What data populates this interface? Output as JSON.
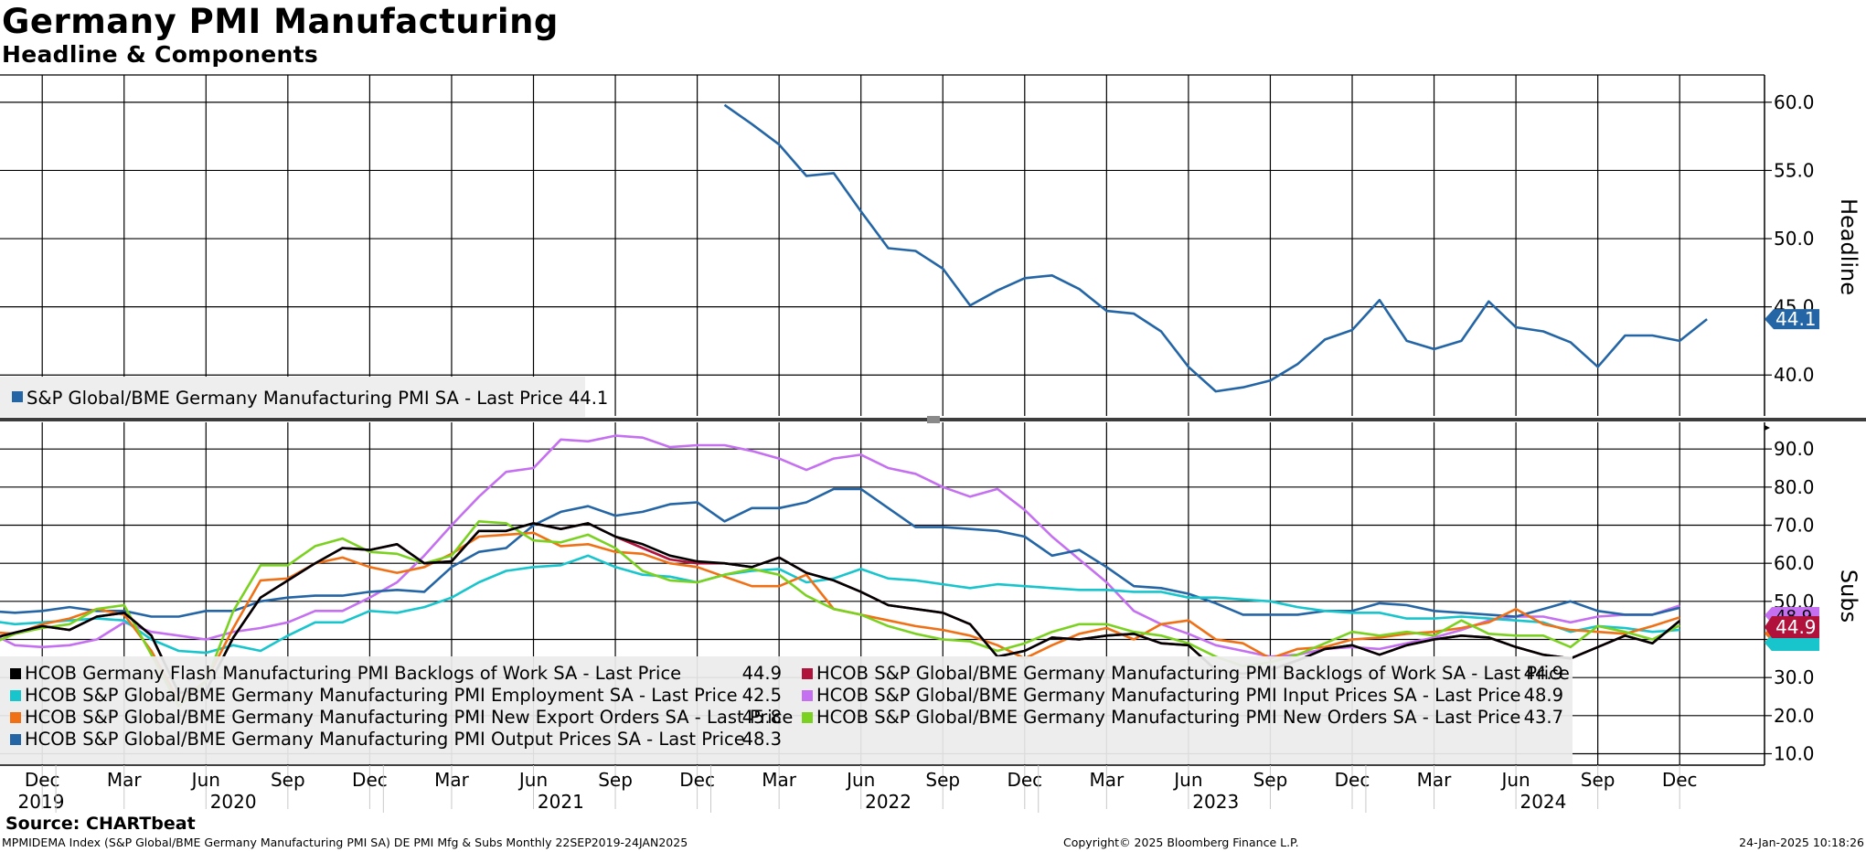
{
  "header": {
    "title": "Germany PMI Manufacturing",
    "subtitle": "Headline & Components"
  },
  "footer": {
    "source": "Source: CHARTbeat",
    "left": "MPMIDEMA Index (S&P Global/BME Germany Manufacturing PMI SA) DE PMI Mfg & Subs  Monthly 22SEP2019-24JAN2025",
    "center": "Copyright© 2025 Bloomberg Finance L.P.",
    "right": "24-Jan-2025 10:18:26"
  },
  "chart_data": [
    {
      "type": "line",
      "panel": "Headline",
      "ylabel": "Headline",
      "ylim": [
        37.0,
        62.0
      ],
      "yticks": [
        "60.0",
        "55.0",
        "50.0",
        "45.0",
        "40.0"
      ],
      "grid": true,
      "legend_position": "bottom-left",
      "series": [
        {
          "name": "S&P Global/BME Germany Manufacturing PMI SA - Last Price",
          "legend_value": "44.1",
          "last_label": "44.1",
          "color": "#2465a6",
          "start": "2022-01",
          "values": [
            59.8,
            58.4,
            56.9,
            54.6,
            54.8,
            52.0,
            49.3,
            49.1,
            47.8,
            45.1,
            46.2,
            47.1,
            47.3,
            46.3,
            44.7,
            44.5,
            43.2,
            40.6,
            38.8,
            39.1,
            39.6,
            40.8,
            42.6,
            43.3,
            45.5,
            42.5,
            41.9,
            42.5,
            45.4,
            43.5,
            43.2,
            42.4,
            40.6,
            42.9,
            42.9,
            42.5,
            44.1
          ]
        }
      ]
    },
    {
      "type": "line",
      "panel": "Subs",
      "ylabel": "Subs",
      "ylim": [
        7.0,
        97.0
      ],
      "yticks": [
        "90.0",
        "80.0",
        "70.0",
        "60.0",
        "50.0",
        "40.0",
        "30.0",
        "20.0",
        "10.0"
      ],
      "grid": true,
      "legend_position": "bottom-left",
      "last_labels": [
        "48.9",
        "44.9"
      ],
      "start": "2019-10",
      "series": [
        {
          "name": "HCOB Germany Flash Manufacturing PMI Backlogs of Work SA - Last Price",
          "legend_value": "44.9",
          "color": "#000000",
          "values": [
            40.0,
            41.8,
            43.5,
            42.5,
            46.0,
            47.0,
            41.0,
            26.0,
            26.5,
            40.5,
            51.0,
            55.5,
            60.0,
            64.0,
            63.5,
            65.0,
            60.0,
            60.5,
            68.5,
            68.5,
            70.5,
            69.0,
            70.5,
            67.0,
            65.0,
            62.0,
            60.5,
            60.0,
            59.0,
            61.5,
            57.5,
            55.5,
            52.5,
            49.0,
            48.0,
            47.0,
            44.0,
            35.5,
            37.0,
            40.5,
            40.0,
            41.0,
            41.5,
            39.0,
            38.5,
            32.0,
            31.0,
            32.0,
            34.5,
            37.5,
            38.5,
            36.0,
            38.5,
            40.0,
            41.0,
            40.5,
            38.0,
            36.0,
            35.0,
            38.0,
            41.0,
            39.0,
            44.9
          ]
        },
        {
          "name": "HCOB S&P Global/BME Germany Manufacturing PMI Backlogs of Work SA - Last Price",
          "legend_value": "44.9",
          "color": "#b0123c",
          "values": [
            40.0,
            41.8,
            43.5,
            42.5,
            46.0,
            47.0,
            41.0,
            26.0,
            26.5,
            40.5,
            51.0,
            55.5,
            60.0,
            64.0,
            63.5,
            65.0,
            60.0,
            60.5,
            68.5,
            68.5,
            70.5,
            69.0,
            70.5,
            67.0,
            64.0,
            61.0,
            60.0,
            60.0,
            59.0,
            61.5,
            57.5,
            55.5,
            52.5,
            49.0,
            48.0,
            47.0,
            44.0,
            35.5,
            37.0,
            40.5,
            40.0,
            41.0,
            41.5,
            39.0,
            38.5,
            32.0,
            31.0,
            32.0,
            34.5,
            37.5,
            38.5,
            36.0,
            38.5,
            40.0,
            41.0,
            40.5,
            38.0,
            36.0,
            35.0,
            38.0,
            41.0,
            39.0,
            44.9
          ]
        },
        {
          "name": "HCOB S&P Global/BME Germany Manufacturing PMI Employment SA - Last Price",
          "legend_value": "42.5",
          "color": "#18c5cd",
          "values": [
            45.0,
            44.0,
            44.5,
            45.0,
            45.5,
            45.0,
            40.0,
            37.0,
            36.5,
            38.5,
            37.0,
            41.0,
            44.5,
            44.5,
            47.5,
            47.0,
            48.5,
            51.0,
            55.0,
            58.0,
            59.0,
            59.5,
            62.0,
            59.0,
            57.0,
            56.5,
            55.0,
            57.0,
            58.0,
            58.5,
            55.0,
            56.0,
            58.5,
            56.0,
            55.5,
            54.5,
            53.5,
            54.5,
            54.0,
            53.5,
            53.0,
            53.0,
            52.5,
            52.5,
            51.0,
            51.0,
            50.5,
            50.0,
            48.5,
            47.5,
            47.0,
            47.0,
            45.5,
            45.5,
            46.0,
            45.5,
            45.0,
            44.5,
            42.0,
            43.5,
            43.0,
            42.0,
            42.5
          ]
        },
        {
          "name": "HCOB S&P Global/BME Germany Manufacturing PMI Input Prices SA - Last Price",
          "legend_value": "48.9",
          "color": "#c570f0",
          "values": [
            42.0,
            38.5,
            38.0,
            38.5,
            40.0,
            44.5,
            42.0,
            41.0,
            40.0,
            42.0,
            43.0,
            44.5,
            47.5,
            47.5,
            51.0,
            55.0,
            62.0,
            70.0,
            77.5,
            84.0,
            85.0,
            92.5,
            92.0,
            93.5,
            93.0,
            90.5,
            91.0,
            91.0,
            89.5,
            87.5,
            84.5,
            87.5,
            88.5,
            85.0,
            83.5,
            80.0,
            77.5,
            79.5,
            74.0,
            67.0,
            61.0,
            55.0,
            47.5,
            44.0,
            41.5,
            38.5,
            37.0,
            35.5,
            36.0,
            37.5,
            38.0,
            37.5,
            39.0,
            40.5,
            42.5,
            45.0,
            46.0,
            46.0,
            44.5,
            46.0,
            46.5,
            46.5,
            48.9
          ]
        },
        {
          "name": "HCOB S&P Global/BME Germany Manufacturing PMI New Export Orders SA - Last Price",
          "legend_value": "45.8",
          "color": "#f07015",
          "values": [
            42.0,
            41.5,
            44.0,
            45.5,
            48.0,
            46.5,
            37.0,
            24.0,
            29.0,
            43.0,
            55.5,
            56.0,
            60.0,
            61.5,
            59.0,
            57.5,
            59.0,
            62.5,
            67.0,
            67.5,
            68.0,
            64.5,
            65.0,
            63.0,
            62.5,
            60.0,
            59.0,
            56.5,
            54.0,
            54.0,
            57.0,
            48.0,
            46.5,
            45.0,
            43.5,
            42.5,
            41.0,
            38.5,
            35.0,
            38.5,
            41.5,
            43.0,
            40.0,
            44.0,
            45.0,
            40.0,
            39.0,
            35.0,
            37.5,
            38.0,
            40.0,
            40.5,
            41.5,
            42.0,
            43.0,
            44.5,
            48.0,
            44.0,
            42.5,
            42.0,
            41.5,
            43.5,
            45.8
          ]
        },
        {
          "name": "HCOB S&P Global/BME Germany Manufacturing PMI New Orders SA - Last Price",
          "legend_value": "43.7",
          "color": "#7ad11f",
          "values": [
            38.5,
            41.5,
            43.0,
            44.0,
            48.0,
            49.0,
            36.0,
            22.5,
            29.0,
            47.5,
            59.5,
            59.5,
            64.5,
            66.5,
            63.0,
            62.5,
            60.0,
            62.0,
            71.0,
            70.5,
            66.0,
            65.5,
            67.5,
            64.0,
            58.0,
            55.5,
            55.0,
            57.0,
            58.5,
            57.0,
            51.5,
            48.0,
            46.5,
            43.5,
            41.5,
            40.0,
            39.5,
            37.0,
            39.0,
            42.0,
            44.0,
            44.0,
            42.0,
            41.0,
            39.0,
            35.5,
            33.0,
            34.0,
            36.0,
            39.0,
            42.0,
            41.0,
            42.0,
            41.0,
            45.0,
            41.5,
            41.0,
            41.0,
            38.0,
            43.5,
            42.0,
            40.0,
            43.7
          ]
        },
        {
          "name": "HCOB S&P Global/BME Germany Manufacturing PMI Output Prices SA - Last Price",
          "legend_value": "48.3",
          "color": "#2465a6",
          "values": [
            47.5,
            47.0,
            47.5,
            48.5,
            47.5,
            47.5,
            46.0,
            46.0,
            47.5,
            47.5,
            50.0,
            51.0,
            51.5,
            51.5,
            52.5,
            53.0,
            52.5,
            59.0,
            63.0,
            64.0,
            70.0,
            73.5,
            75.0,
            72.5,
            73.5,
            75.5,
            76.0,
            71.0,
            74.5,
            74.5,
            76.0,
            79.5,
            79.5,
            74.5,
            69.5,
            69.5,
            69.0,
            68.5,
            67.0,
            62.0,
            63.5,
            59.0,
            54.0,
            53.5,
            52.0,
            49.5,
            46.5,
            46.5,
            46.5,
            47.5,
            47.5,
            49.5,
            49.0,
            47.5,
            47.0,
            46.5,
            46.0,
            48.0,
            50.0,
            47.5,
            46.5,
            46.5,
            48.3
          ]
        }
      ]
    }
  ],
  "x_axis": {
    "months": [
      "Dec",
      "Mar",
      "Jun",
      "Sep",
      "Dec",
      "Mar",
      "Jun",
      "Sep",
      "Dec",
      "Mar",
      "Jun",
      "Sep",
      "Dec",
      "Mar",
      "Jun",
      "Sep",
      "Dec",
      "Mar",
      "Jun",
      "Sep",
      "Dec"
    ],
    "years": [
      "2019",
      "2020",
      "2021",
      "2022",
      "2023",
      "2024"
    ]
  }
}
